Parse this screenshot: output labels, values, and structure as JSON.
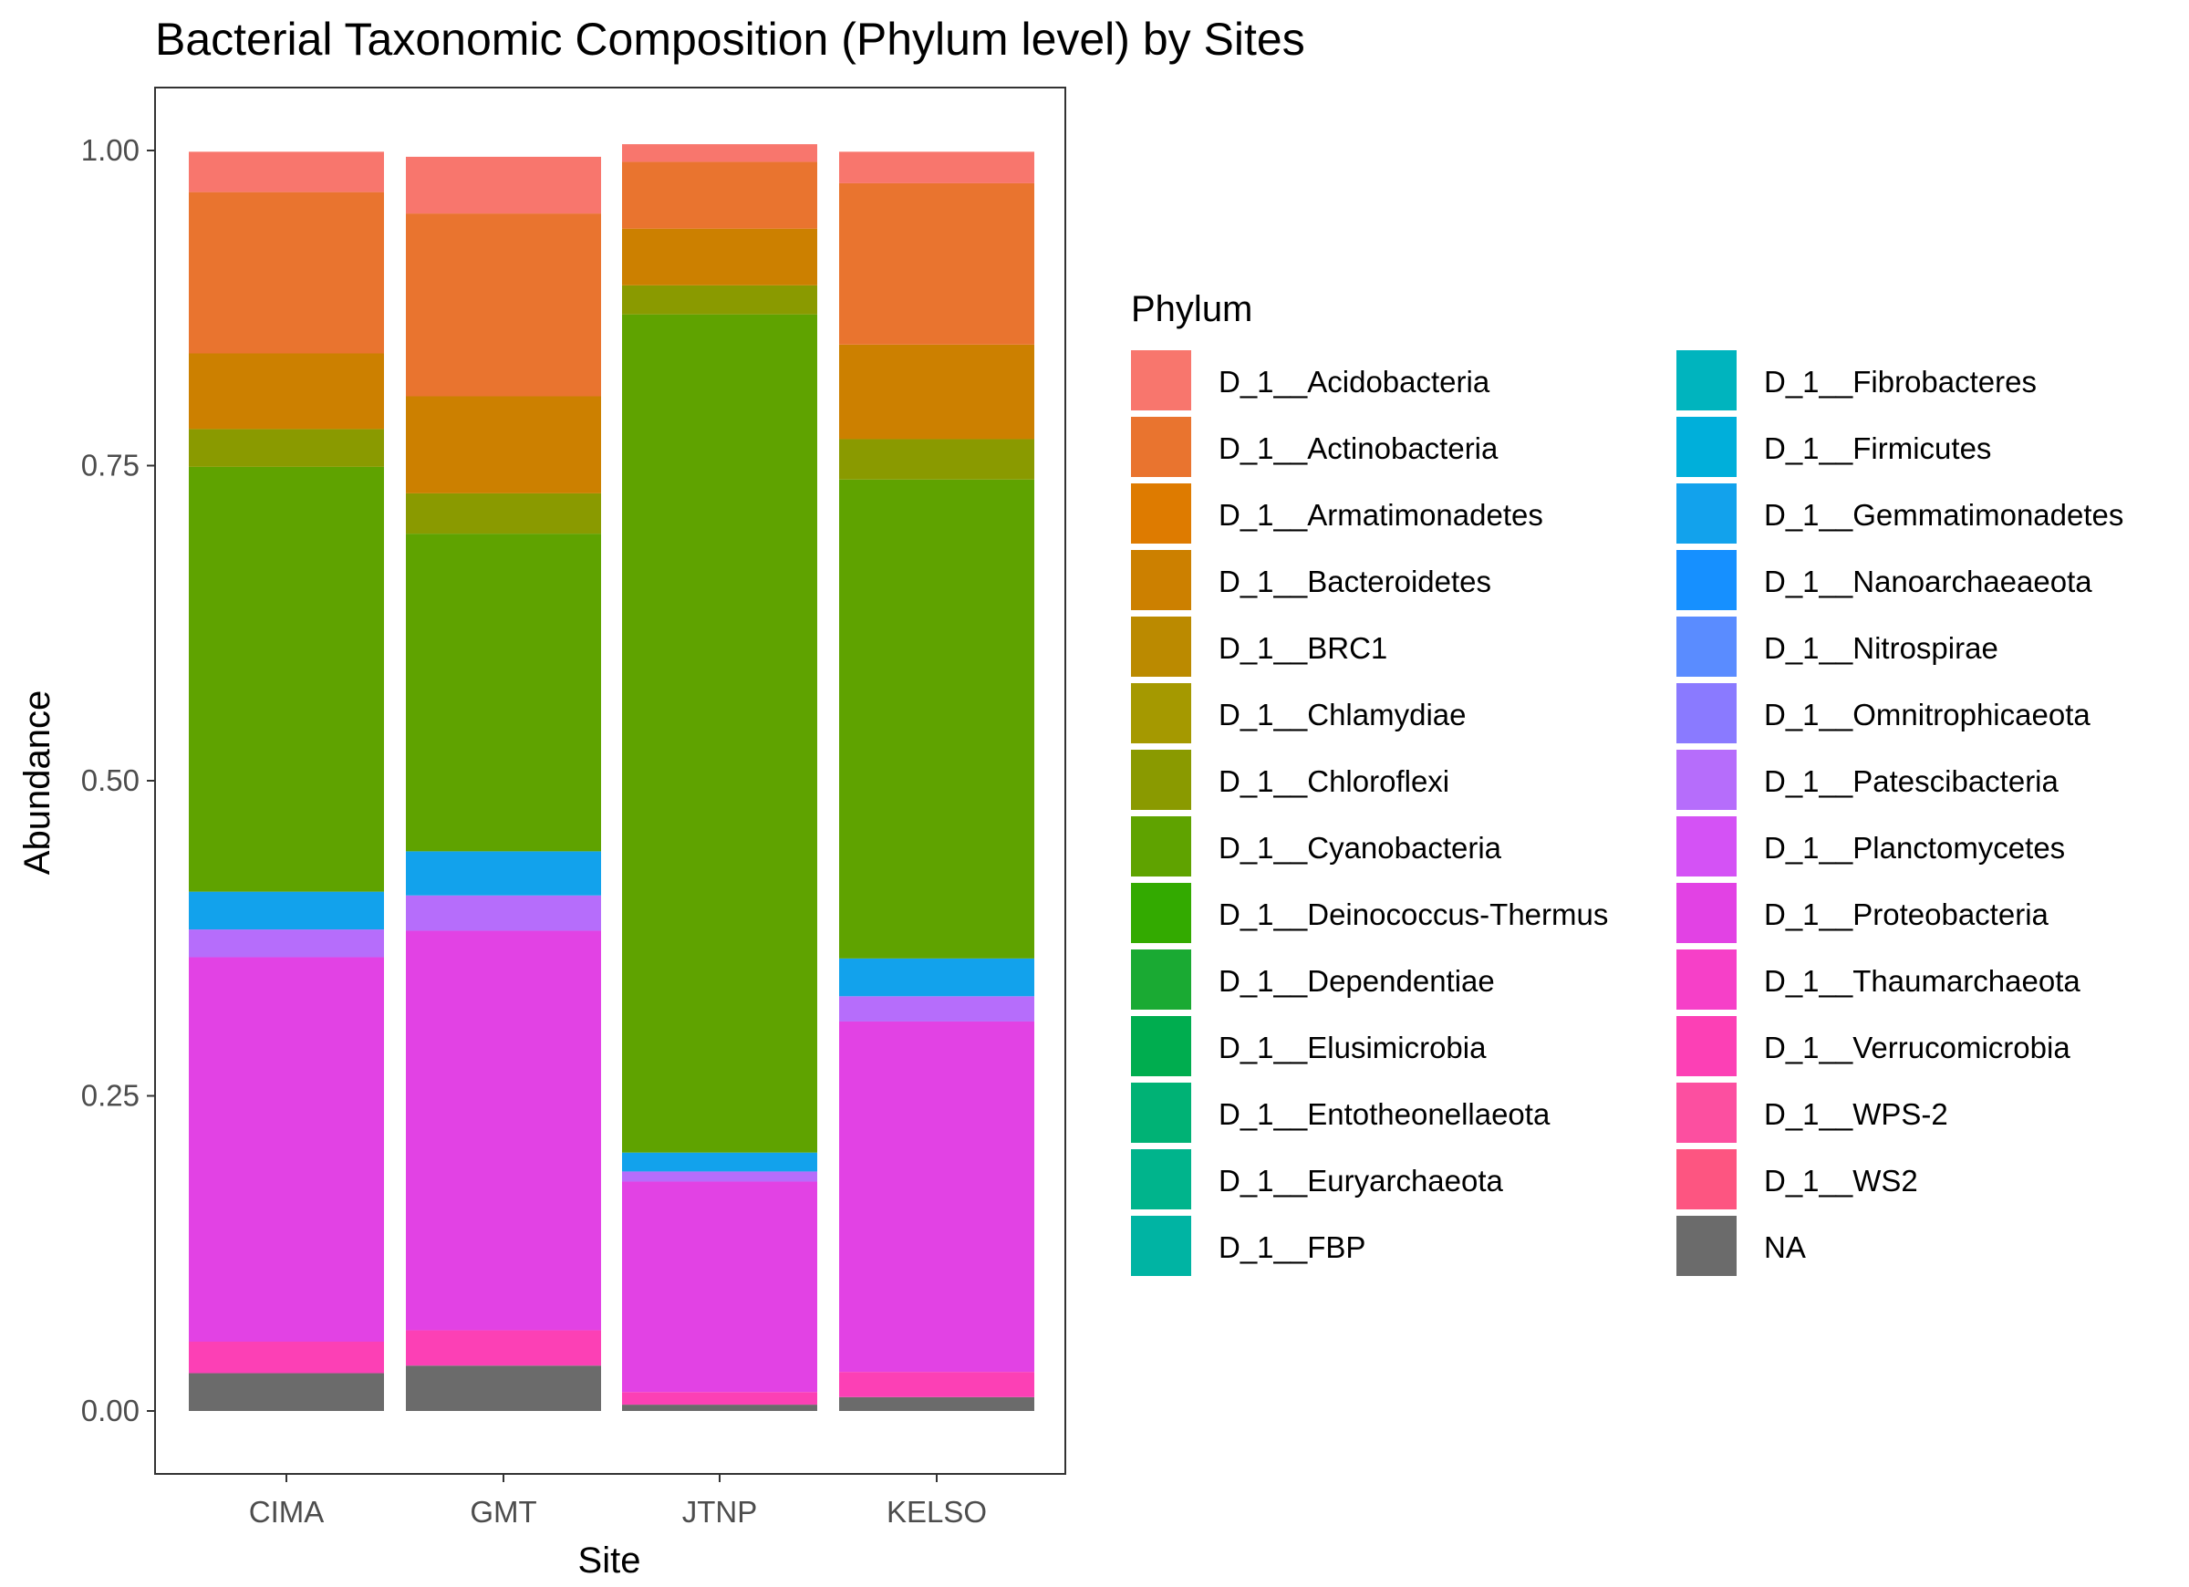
{
  "chart_data": {
    "type": "bar",
    "stacked": true,
    "title": "Bacterial Taxonomic Composition (Phylum level) by Sites",
    "xlabel": "Site",
    "ylabel": "Abundance",
    "categories": [
      "CIMA",
      "GMT",
      "JTNP",
      "KELSO"
    ],
    "ylim": [
      0,
      1
    ],
    "yticks": [
      "0.00",
      "0.25",
      "0.50",
      "0.75",
      "1.00"
    ],
    "grid": false,
    "legend_title": "Phylum",
    "legend_position": "right",
    "series": [
      {
        "name": "D_1__Acidobacteria",
        "color": "#F8766D",
        "values": [
          0.032,
          0.045,
          0.014,
          0.025
        ]
      },
      {
        "name": "D_1__Actinobacteria",
        "color": "#E9742F",
        "values": [
          0.128,
          0.145,
          0.053,
          0.128
        ]
      },
      {
        "name": "D_1__Armatimonadetes",
        "color": "#DE7B00",
        "values": [
          0.0,
          0.0,
          0.0,
          0.0
        ]
      },
      {
        "name": "D_1__Bacteroidetes",
        "color": "#CC8000",
        "values": [
          0.06,
          0.077,
          0.045,
          0.075
        ]
      },
      {
        "name": "D_1__BRC1",
        "color": "#BB8A00",
        "values": [
          0.0,
          0.0,
          0.0,
          0.0
        ]
      },
      {
        "name": "D_1__Chlamydiae",
        "color": "#A59900",
        "values": [
          0.0,
          0.0,
          0.0,
          0.0
        ]
      },
      {
        "name": "D_1__Chloroflexi",
        "color": "#8A9A00",
        "values": [
          0.03,
          0.032,
          0.023,
          0.032
        ]
      },
      {
        "name": "D_1__Cyanobacteria",
        "color": "#5FA300",
        "values": [
          0.337,
          0.252,
          0.665,
          0.38
        ]
      },
      {
        "name": "D_1__Deinococcus-Thermus",
        "color": "#33AA00",
        "values": [
          0.0,
          0.0,
          0.0,
          0.0
        ]
      },
      {
        "name": "D_1__Dependentiae",
        "color": "#1AAA33",
        "values": [
          0.0,
          0.0,
          0.0,
          0.0
        ]
      },
      {
        "name": "D_1__Elusimicrobia",
        "color": "#00AD4F",
        "values": [
          0.0,
          0.0,
          0.0,
          0.0
        ]
      },
      {
        "name": "D_1__Entotheonellaeota",
        "color": "#00B275",
        "values": [
          0.0,
          0.0,
          0.0,
          0.0
        ]
      },
      {
        "name": "D_1__Euryarchaeota",
        "color": "#00B48C",
        "values": [
          0.0,
          0.0,
          0.0,
          0.0
        ]
      },
      {
        "name": "D_1__FBP",
        "color": "#00B4A3",
        "values": [
          0.0,
          0.0,
          0.0,
          0.0
        ]
      },
      {
        "name": "D_1__Fibrobacteres",
        "color": "#00B4BE",
        "values": [
          0.0,
          0.0,
          0.0,
          0.0
        ]
      },
      {
        "name": "D_1__Firmicutes",
        "color": "#00AFDA",
        "values": [
          0.0,
          0.0,
          0.0,
          0.0
        ]
      },
      {
        "name": "D_1__Gemmatimonadetes",
        "color": "#12A2EC",
        "values": [
          0.03,
          0.035,
          0.015,
          0.03
        ]
      },
      {
        "name": "D_1__Nanoarchaeaeota",
        "color": "#1690FF",
        "values": [
          0.0,
          0.0,
          0.0,
          0.0
        ]
      },
      {
        "name": "D_1__Nitrospirae",
        "color": "#5A8CFF",
        "values": [
          0.0,
          0.0,
          0.0,
          0.0
        ]
      },
      {
        "name": "D_1__Omnitrophicaeota",
        "color": "#8A7AFF",
        "values": [
          0.0,
          0.0,
          0.0,
          0.0
        ]
      },
      {
        "name": "D_1__Patescibacteria",
        "color": "#B66DFB",
        "values": [
          0.022,
          0.028,
          0.008,
          0.02
        ]
      },
      {
        "name": "D_1__Planctomycetes",
        "color": "#D452F5",
        "values": [
          0.0,
          0.0,
          0.0,
          0.0
        ]
      },
      {
        "name": "D_1__Proteobacteria",
        "color": "#E242E4",
        "values": [
          0.305,
          0.317,
          0.167,
          0.278
        ]
      },
      {
        "name": "D_1__Thaumarchaeota",
        "color": "#F640C8",
        "values": [
          0.0,
          0.0,
          0.0,
          0.0
        ]
      },
      {
        "name": "D_1__Verrucomicrobia",
        "color": "#FC40B5",
        "values": [
          0.025,
          0.028,
          0.01,
          0.02
        ]
      },
      {
        "name": "D_1__WPS-2",
        "color": "#FC4FA0",
        "values": [
          0.0,
          0.0,
          0.0,
          0.0
        ]
      },
      {
        "name": "D_1__WS2",
        "color": "#FD5581",
        "values": [
          0.0,
          0.0,
          0.0,
          0.0
        ]
      },
      {
        "name": "NA",
        "color": "#6B6B6B",
        "values": [
          0.03,
          0.036,
          0.005,
          0.011
        ]
      }
    ]
  }
}
